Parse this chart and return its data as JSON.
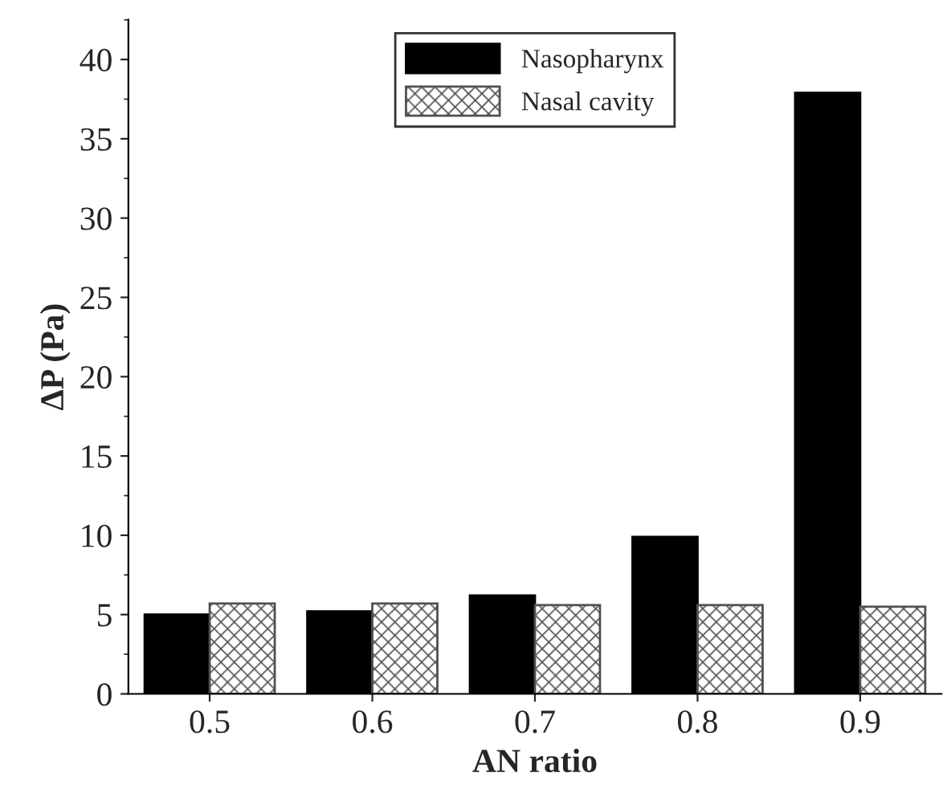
{
  "chart_data": {
    "type": "bar",
    "xlabel": "AN ratio",
    "ylabel": "ΔP (Pa)",
    "categories": [
      "0.5",
      "0.6",
      "0.7",
      "0.8",
      "0.9"
    ],
    "series": [
      {
        "name": "Nasopharynx",
        "color": "#000000",
        "values": [
          5.0,
          5.2,
          6.2,
          9.9,
          37.9
        ]
      },
      {
        "name": "Nasal cavity",
        "color": "#505050",
        "values": [
          5.7,
          5.7,
          5.6,
          5.6,
          5.5
        ]
      }
    ],
    "ylim": [
      0,
      42.5
    ],
    "yticks": [
      0,
      5,
      10,
      15,
      20,
      25,
      30,
      35,
      40
    ],
    "grid": false,
    "legend": "top"
  }
}
